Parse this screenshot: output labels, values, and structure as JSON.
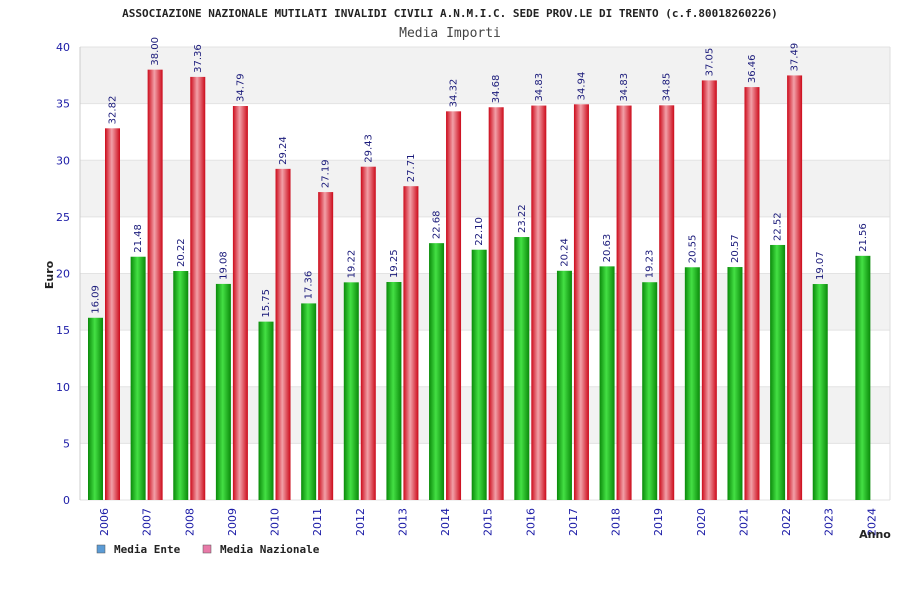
{
  "chart_data": {
    "type": "bar",
    "title": "ASSOCIAZIONE NAZIONALE MUTILATI INVALIDI CIVILI A.N.M.I.C. SEDE PROV.LE DI TRENTO (c.f.80018260226)",
    "subtitle": "Media Importi",
    "xlabel": "Anno",
    "ylabel": "Euro",
    "ylim": [
      0,
      40
    ],
    "yticks": [
      0,
      5,
      10,
      15,
      20,
      25,
      30,
      35,
      40
    ],
    "categories": [
      "2006",
      "2007",
      "2008",
      "2009",
      "2010",
      "2011",
      "2012",
      "2013",
      "2014",
      "2015",
      "2016",
      "2017",
      "2018",
      "2019",
      "2020",
      "2021",
      "2022",
      "2023",
      "2024"
    ],
    "series": [
      {
        "name": "Media Ente",
        "color": "#22bb22",
        "legend_color": "#5b9bd5",
        "values": [
          16.09,
          21.48,
          20.22,
          19.08,
          15.75,
          17.36,
          19.22,
          19.25,
          22.68,
          22.1,
          23.22,
          20.24,
          20.63,
          19.23,
          20.55,
          20.57,
          22.52,
          19.07,
          21.56
        ],
        "labels": [
          "16.09",
          "21.48",
          "20.22",
          "19.08",
          "15.75",
          "17.36",
          "19.22",
          "19.25",
          "22.68",
          "22.10",
          "23.22",
          "20.24",
          "20.63",
          "19.23",
          "20.55",
          "20.57",
          "22.52",
          "19.07",
          "21.56"
        ]
      },
      {
        "name": "Media Nazionale",
        "color": "#ee2233",
        "legend_color": "#e87aa8",
        "values": [
          32.82,
          38.0,
          37.36,
          34.79,
          29.24,
          27.19,
          29.43,
          27.71,
          34.32,
          34.68,
          34.83,
          34.94,
          34.83,
          34.85,
          37.05,
          36.46,
          37.49,
          null,
          null
        ],
        "labels": [
          "32.82",
          "38.00",
          "37.36",
          "34.79",
          "29.24",
          "27.19",
          "29.43",
          "27.71",
          "34.32",
          "34.68",
          "34.83",
          "34.94",
          "34.83",
          "34.85",
          "37.05",
          "36.46",
          "37.49",
          null,
          null
        ]
      }
    ],
    "grid": true,
    "legend_position": "bottom-left"
  }
}
